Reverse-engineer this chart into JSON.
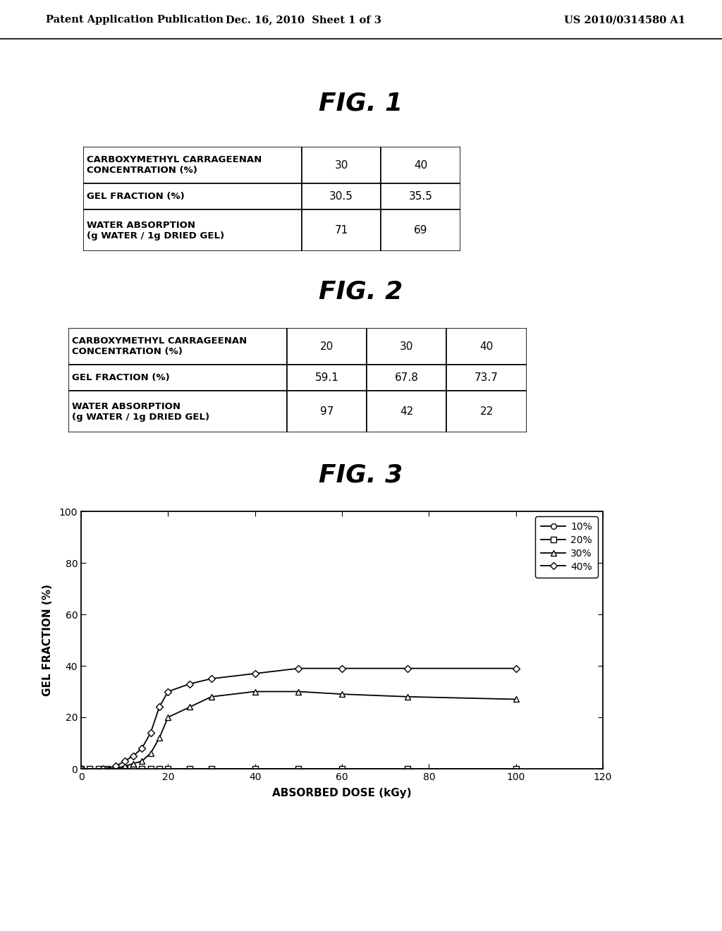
{
  "header_left": "Patent Application Publication",
  "header_mid": "Dec. 16, 2010  Sheet 1 of 3",
  "header_right": "US 2010/0314580 A1",
  "fig1_title": "FIG. 1",
  "fig1_rows": [
    [
      "CARBOXYMETHYL CARRAGEENAN\nCONCENTRATION (%)",
      "30",
      "40"
    ],
    [
      "GEL FRACTION (%)",
      "30.5",
      "35.5"
    ],
    [
      "WATER ABSORPTION\n(g WATER / 1g DRIED GEL)",
      "71",
      "69"
    ]
  ],
  "fig2_title": "FIG. 2",
  "fig2_rows": [
    [
      "CARBOXYMETHYL CARRAGEENAN\nCONCENTRATION (%)",
      "20",
      "30",
      "40"
    ],
    [
      "GEL FRACTION (%)",
      "59.1",
      "67.8",
      "73.7"
    ],
    [
      "WATER ABSORPTION\n(g WATER / 1g DRIED GEL)",
      "97",
      "42",
      "22"
    ]
  ],
  "fig3_title": "FIG. 3",
  "s10_x": [
    0,
    2,
    4,
    6,
    8,
    10,
    12,
    14,
    16,
    18,
    20,
    25,
    30,
    40,
    50,
    60,
    75,
    100
  ],
  "s10_y": [
    0,
    0,
    0,
    0,
    0,
    0,
    0,
    0,
    0,
    0,
    0,
    0,
    0,
    0,
    0,
    0,
    0,
    0
  ],
  "s20_x": [
    0,
    2,
    4,
    6,
    8,
    10,
    12,
    14,
    16,
    18,
    20,
    25,
    30,
    40,
    50,
    60,
    75,
    100
  ],
  "s20_y": [
    0,
    0,
    0,
    0,
    0,
    0,
    0,
    0,
    0,
    0,
    0,
    0,
    0,
    0,
    0,
    0,
    0,
    0
  ],
  "s30_x": [
    0,
    5,
    8,
    10,
    12,
    14,
    16,
    18,
    20,
    25,
    30,
    40,
    50,
    60,
    75,
    100
  ],
  "s30_y": [
    0,
    0,
    0,
    1,
    2,
    3,
    6,
    12,
    20,
    24,
    28,
    30,
    30,
    29,
    28,
    27
  ],
  "s40_x": [
    0,
    5,
    8,
    10,
    12,
    14,
    16,
    18,
    20,
    25,
    30,
    40,
    50,
    60,
    75,
    100
  ],
  "s40_y": [
    0,
    0,
    1,
    3,
    5,
    8,
    14,
    24,
    30,
    33,
    35,
    37,
    39,
    39,
    39,
    39
  ],
  "xlabel": "ABSORBED DOSE (kGy)",
  "ylabel": "GEL FRACTION (%)",
  "xlim": [
    0,
    120
  ],
  "ylim": [
    0,
    100
  ],
  "xticks": [
    0,
    20,
    40,
    60,
    80,
    100,
    120
  ],
  "yticks": [
    0,
    20,
    40,
    60,
    80,
    100
  ],
  "bg_color": "#ffffff"
}
